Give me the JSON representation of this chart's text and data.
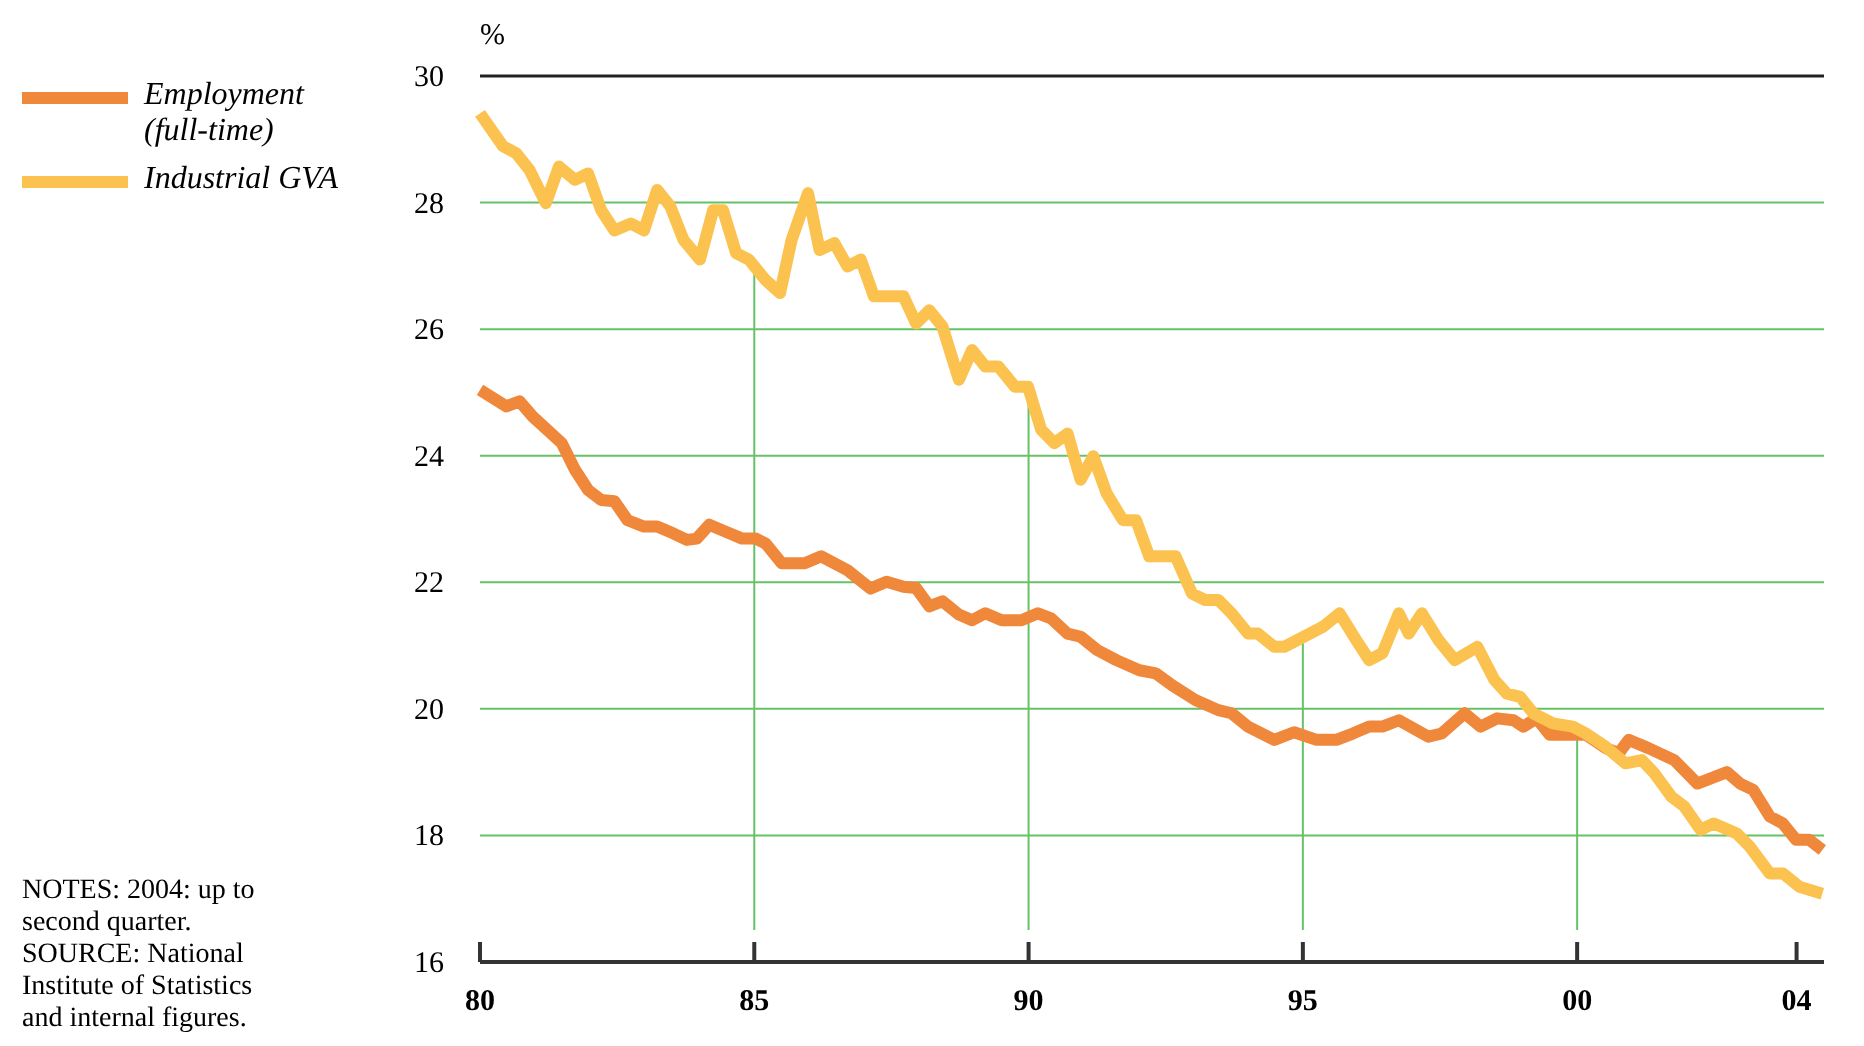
{
  "chart_data": {
    "type": "line",
    "ylabel": "%",
    "xlim": [
      1980,
      2004.5
    ],
    "ylim": [
      16,
      30
    ],
    "xticks": [
      {
        "value": 1980,
        "label": "80"
      },
      {
        "value": 1985,
        "label": "85"
      },
      {
        "value": 1990,
        "label": "90"
      },
      {
        "value": 1995,
        "label": "95"
      },
      {
        "value": 2000,
        "label": "00"
      },
      {
        "value": 2004,
        "label": "04"
      }
    ],
    "ref_lines": [
      {
        "axis": "x",
        "value": 1985,
        "color": "#66c266"
      },
      {
        "axis": "x",
        "value": 1990,
        "color": "#66c266"
      },
      {
        "axis": "x",
        "value": 1995,
        "color": "#66c266"
      },
      {
        "axis": "x",
        "value": 2000,
        "color": "#66c266"
      }
    ],
    "yticks": [
      16,
      18,
      20,
      22,
      24,
      26,
      28,
      30
    ],
    "grid": "y",
    "legend": "top left",
    "line_style": "solid",
    "marker": "none",
    "annotations": [
      "NOTES: 2004: up to second quarter.",
      "SOURCE: National Institute of Statistics and internal figures."
    ],
    "series": [
      {
        "name": "Employment (full-time)",
        "color": "#f0883c",
        "x": [
          1980,
          1980.48,
          1980.72,
          1980.96,
          1981.49,
          1981.73,
          1981.97,
          1982.21,
          1982.45,
          1982.69,
          1982.99,
          1983.23,
          1983.53,
          1983.77,
          1983.95,
          1984.18,
          1984.48,
          1984.78,
          1985.03,
          1985.21,
          1985.5,
          1985.92,
          1986.22,
          1986.7,
          1987.12,
          1987.41,
          1987.72,
          1987.95,
          1988.19,
          1988.43,
          1988.73,
          1988.97,
          1989.21,
          1989.51,
          1989.87,
          1990.17,
          1990.41,
          1990.71,
          1990.95,
          1991.25,
          1991.6,
          1992.02,
          1992.32,
          1992.62,
          1993.04,
          1993.46,
          1993.7,
          1994.0,
          1994.48,
          1994.84,
          1995.25,
          1995.61,
          1995.91,
          1996.21,
          1996.45,
          1996.75,
          1997.29,
          1997.53,
          1997.95,
          1998.24,
          1998.54,
          1998.84,
          1999.02,
          1999.26,
          1999.5,
          2000.16,
          2000.52,
          2000.76,
          2000.94,
          2001.3,
          2001.77,
          2002.19,
          2002.73,
          2002.97,
          2003.21,
          2003.51,
          2003.75,
          2003.99,
          2004.23,
          2004.47
        ],
        "values": [
          25.04,
          24.78,
          24.86,
          24.62,
          24.2,
          23.78,
          23.46,
          23.3,
          23.28,
          22.98,
          22.88,
          22.88,
          22.77,
          22.67,
          22.69,
          22.91,
          22.8,
          22.69,
          22.69,
          22.61,
          22.3,
          22.3,
          22.41,
          22.19,
          21.9,
          22.01,
          21.93,
          21.91,
          21.62,
          21.7,
          21.49,
          21.4,
          21.51,
          21.4,
          21.4,
          21.51,
          21.43,
          21.19,
          21.14,
          20.93,
          20.77,
          20.61,
          20.56,
          20.37,
          20.14,
          19.98,
          19.93,
          19.72,
          19.51,
          19.63,
          19.51,
          19.51,
          19.61,
          19.72,
          19.72,
          19.82,
          19.56,
          19.61,
          19.93,
          19.72,
          19.85,
          19.82,
          19.72,
          19.85,
          19.59,
          19.59,
          19.38,
          19.3,
          19.51,
          19.38,
          19.19,
          18.82,
          19.0,
          18.82,
          18.72,
          18.3,
          18.19,
          17.93,
          17.93,
          17.77
        ]
      },
      {
        "name": "Industrial GVA",
        "color": "#fcc250",
        "x": [
          1980,
          1980.42,
          1980.66,
          1980.9,
          1981.2,
          1981.44,
          1981.73,
          1981.97,
          1982.21,
          1982.45,
          1982.75,
          1982.99,
          1983.23,
          1983.47,
          1983.71,
          1984.01,
          1984.25,
          1984.43,
          1984.67,
          1984.9,
          1985.2,
          1985.47,
          1985.68,
          1985.98,
          1986.19,
          1986.46,
          1986.7,
          1986.94,
          1987.18,
          1987.72,
          1987.95,
          1988.19,
          1988.43,
          1988.73,
          1988.97,
          1989.21,
          1989.45,
          1989.75,
          1989.99,
          1990.23,
          1990.47,
          1990.71,
          1990.95,
          1991.18,
          1991.42,
          1991.72,
          1991.96,
          1992.2,
          1992.68,
          1992.98,
          1993.22,
          1993.46,
          1993.7,
          1994.0,
          1994.18,
          1994.48,
          1994.66,
          1994.95,
          1995.37,
          1995.67,
          1995.97,
          1996.21,
          1996.45,
          1996.75,
          1996.93,
          1997.17,
          1997.47,
          1997.77,
          1998.18,
          1998.49,
          1998.72,
          1998.96,
          1999.2,
          1999.56,
          1999.92,
          2000.16,
          2000.52,
          2000.88,
          2001.18,
          2001.41,
          2001.72,
          2001.95,
          2002.25,
          2002.49,
          2002.91,
          2003.15,
          2003.51,
          2003.75,
          2004.05,
          2004.47
        ],
        "values": [
          29.41,
          28.89,
          28.78,
          28.52,
          27.99,
          28.57,
          28.36,
          28.46,
          27.88,
          27.56,
          27.67,
          27.56,
          28.2,
          27.94,
          27.41,
          27.1,
          27.88,
          27.88,
          27.2,
          27.1,
          26.78,
          26.57,
          27.41,
          28.15,
          27.25,
          27.36,
          26.99,
          27.1,
          26.52,
          26.52,
          26.09,
          26.3,
          26.04,
          25.2,
          25.67,
          25.41,
          25.41,
          25.09,
          25.09,
          24.41,
          24.2,
          24.35,
          23.62,
          23.99,
          23.41,
          22.98,
          22.98,
          22.41,
          22.41,
          21.82,
          21.72,
          21.72,
          21.51,
          21.19,
          21.19,
          20.98,
          20.98,
          21.11,
          21.3,
          21.51,
          21.09,
          20.77,
          20.88,
          21.51,
          21.19,
          21.51,
          21.09,
          20.77,
          20.98,
          20.46,
          20.24,
          20.19,
          19.93,
          19.77,
          19.72,
          19.61,
          19.4,
          19.14,
          19.19,
          18.98,
          18.61,
          18.46,
          18.09,
          18.19,
          18.03,
          17.82,
          17.4,
          17.4,
          17.19,
          17.08
        ]
      }
    ]
  }
}
